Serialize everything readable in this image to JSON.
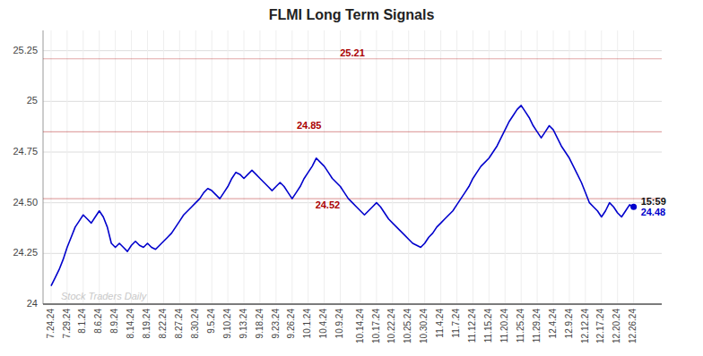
{
  "chart_data": {
    "type": "line",
    "title": "FLMI Long Term Signals",
    "color": "#0000cc",
    "grid": true,
    "ylim": [
      24.0,
      25.35
    ],
    "yticks": [
      24,
      24.25,
      {
        "value": 24.5,
        "label": "24.50"
      },
      24.75,
      25,
      25.25
    ],
    "categories": [
      "7.24.24",
      null,
      null,
      null,
      "7.29.24",
      null,
      null,
      null,
      "8.1.24",
      null,
      null,
      null,
      "8.6.24",
      null,
      null,
      null,
      "8.9.24",
      null,
      null,
      null,
      "8.14.24",
      null,
      null,
      null,
      "8.19.24",
      null,
      null,
      null,
      "8.22.24",
      null,
      null,
      null,
      "8.27.24",
      null,
      null,
      null,
      "8.30.24",
      null,
      null,
      null,
      "9.5.24",
      null,
      null,
      null,
      "9.10.24",
      null,
      null,
      null,
      "9.13.24",
      null,
      null,
      null,
      "9.18.24",
      null,
      null,
      null,
      "9.23.24",
      null,
      null,
      null,
      "9.26.24",
      null,
      null,
      null,
      "10.1.24",
      null,
      null,
      null,
      "10.4.24",
      null,
      null,
      null,
      "10.9.24",
      null,
      null,
      null,
      null,
      "10.14.24",
      null,
      null,
      null,
      "10.17.24",
      null,
      null,
      null,
      "10.22.24",
      null,
      null,
      null,
      "10.25.24",
      null,
      null,
      null,
      "10.30.24",
      null,
      null,
      null,
      "11.4.24",
      null,
      null,
      null,
      "11.7.24",
      null,
      null,
      null,
      "11.12.24",
      null,
      null,
      null,
      "11.15.24",
      null,
      null,
      null,
      "11.20.24",
      null,
      null,
      null,
      "11.25.24",
      null,
      null,
      null,
      "11.29.24",
      null,
      null,
      null,
      "12.4.24",
      null,
      null,
      null,
      "12.9.24",
      null,
      null,
      null,
      "12.12.24",
      null,
      null,
      null,
      "12.17.24",
      null,
      null,
      null,
      "12.20.24",
      null,
      null,
      null,
      "12.26.24"
    ],
    "values": [
      24.09,
      24.13,
      24.17,
      24.22,
      24.28,
      24.33,
      24.38,
      24.41,
      24.44,
      24.42,
      24.4,
      24.43,
      24.46,
      24.43,
      24.38,
      24.3,
      24.28,
      24.3,
      24.28,
      24.26,
      24.29,
      24.31,
      24.29,
      24.28,
      24.3,
      24.28,
      24.27,
      24.29,
      24.31,
      24.33,
      24.35,
      24.38,
      24.41,
      24.44,
      24.46,
      24.48,
      24.5,
      24.52,
      24.55,
      24.57,
      24.56,
      24.54,
      24.52,
      24.55,
      24.58,
      24.62,
      24.65,
      24.64,
      24.62,
      24.64,
      24.66,
      24.64,
      24.62,
      24.6,
      24.58,
      24.56,
      24.58,
      24.6,
      24.58,
      24.55,
      24.52,
      24.55,
      24.58,
      24.62,
      24.65,
      24.68,
      24.72,
      24.7,
      24.68,
      24.65,
      24.62,
      24.6,
      24.58,
      24.55,
      24.52,
      24.5,
      24.48,
      24.46,
      24.44,
      24.46,
      24.48,
      24.5,
      24.48,
      24.45,
      24.42,
      24.4,
      24.38,
      24.36,
      24.34,
      24.32,
      24.3,
      24.29,
      24.28,
      24.3,
      24.33,
      24.35,
      24.38,
      24.4,
      24.42,
      24.44,
      24.46,
      24.49,
      24.52,
      24.55,
      24.58,
      24.62,
      24.65,
      24.68,
      24.7,
      24.72,
      24.75,
      24.78,
      24.82,
      24.86,
      24.9,
      24.93,
      24.96,
      24.98,
      24.95,
      24.92,
      24.88,
      24.85,
      24.82,
      24.85,
      24.88,
      24.86,
      24.82,
      24.78,
      24.75,
      24.72,
      24.68,
      24.64,
      24.6,
      24.55,
      24.5,
      24.48,
      24.46,
      24.43,
      24.46,
      24.5,
      24.48,
      24.45,
      24.43,
      24.46,
      24.49,
      24.48
    ],
    "annotations": [
      {
        "text": "25.21",
        "value": 25.21,
        "color": "#aa0000"
      },
      {
        "text": "24.85",
        "value": 24.85,
        "color": "#aa0000"
      },
      {
        "text": "24.52",
        "value": 24.52,
        "color": "#aa0000"
      }
    ],
    "end_label": {
      "time": "15:59",
      "value": 24.48
    },
    "watermark": "Stock Traders Daily"
  }
}
